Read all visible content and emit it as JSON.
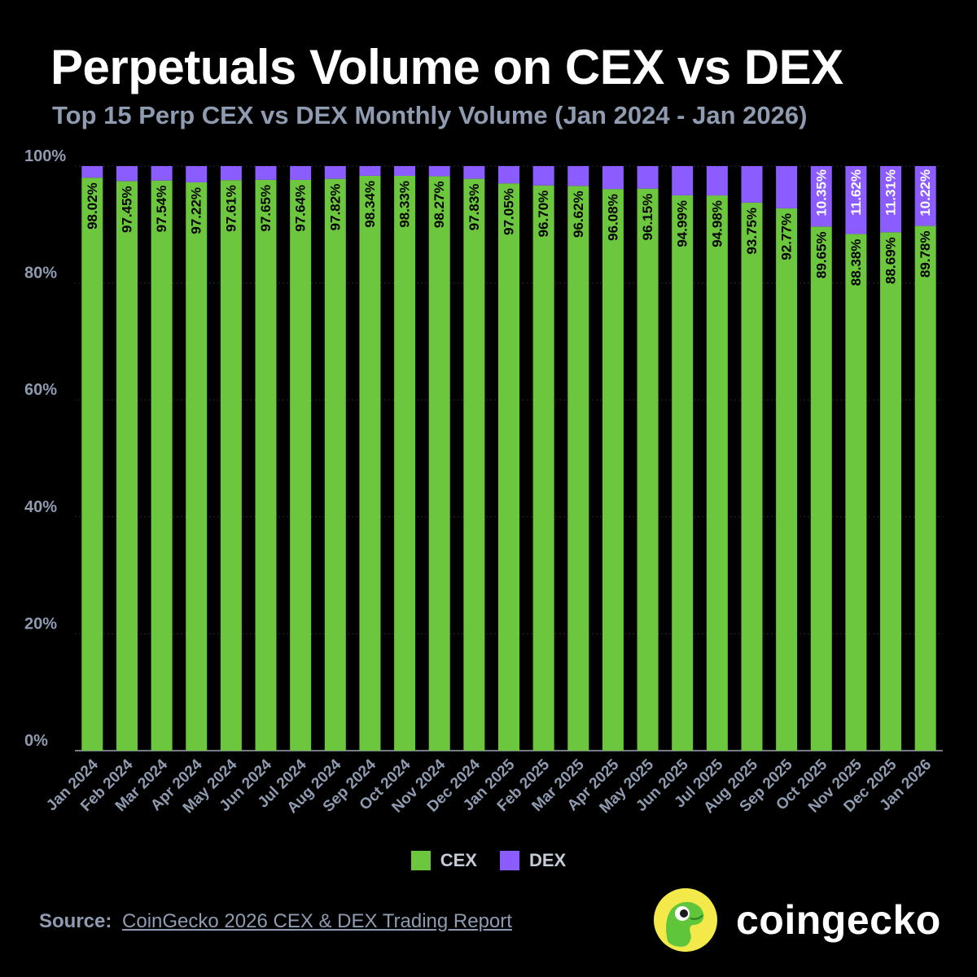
{
  "title": "Perpetuals Volume on CEX vs DEX",
  "subtitle": "Top 15 Perp CEX vs DEX Monthly Volume (Jan 2024 - Jan 2026)",
  "colors": {
    "cex": "#6cc73e",
    "dex": "#8b5cff",
    "background": "#000000",
    "axis_text": "#8e9bb0"
  },
  "chart_data": {
    "type": "bar",
    "stacked": true,
    "ylim": [
      0,
      100
    ],
    "yticks": [
      "0%",
      "20%",
      "40%",
      "60%",
      "80%",
      "100%"
    ],
    "yticks_values": [
      0,
      20,
      40,
      60,
      80,
      100
    ],
    "grid": true,
    "legend_position": "bottom-center",
    "categories": [
      "Jan 2024",
      "Feb 2024",
      "Mar 2024",
      "Apr 2024",
      "May 2024",
      "Jun 2024",
      "Jul 2024",
      "Aug 2024",
      "Sep 2024",
      "Oct 2024",
      "Nov 2024",
      "Dec 2024",
      "Jan 2025",
      "Feb 2025",
      "Mar 2025",
      "Apr 2025",
      "May 2025",
      "Jun 2025",
      "Jul 2025",
      "Aug 2025",
      "Sep 2025",
      "Oct 2025",
      "Nov 2025",
      "Dec 2025",
      "Jan 2026"
    ],
    "series": [
      {
        "name": "CEX",
        "values": [
          98.02,
          97.45,
          97.54,
          97.22,
          97.61,
          97.65,
          97.64,
          97.82,
          98.34,
          98.33,
          98.27,
          97.83,
          97.05,
          96.7,
          96.62,
          96.08,
          96.15,
          94.99,
          94.98,
          93.75,
          92.77,
          89.65,
          88.38,
          88.69,
          89.78
        ],
        "labels": [
          "98.02%",
          "97.45%",
          "97.54%",
          "97.22%",
          "97.61%",
          "97.65%",
          "97.64%",
          "97.82%",
          "98.34%",
          "98.33%",
          "98.27%",
          "97.83%",
          "97.05%",
          "96.70%",
          "96.62%",
          "96.08%",
          "96.15%",
          "94.99%",
          "94.98%",
          "93.75%",
          "92.77%",
          "89.65%",
          "88.38%",
          "88.69%",
          "89.78%"
        ]
      },
      {
        "name": "DEX",
        "values": [
          1.98,
          2.55,
          2.46,
          2.78,
          2.39,
          2.35,
          2.36,
          2.18,
          1.66,
          1.67,
          1.73,
          2.17,
          2.95,
          3.3,
          3.38,
          3.92,
          3.85,
          5.01,
          5.02,
          6.25,
          7.23,
          10.35,
          11.62,
          11.31,
          10.22
        ],
        "labels": [
          "",
          "",
          "",
          "",
          "",
          "",
          "",
          "",
          "",
          "",
          "",
          "",
          "",
          "",
          "",
          "",
          "",
          "",
          "",
          "",
          "",
          "10.35%",
          "11.62%",
          "11.31%",
          "10.22%"
        ]
      }
    ]
  },
  "legend": [
    {
      "name": "CEX",
      "color": "#6cc73e"
    },
    {
      "name": "DEX",
      "color": "#8b5cff"
    }
  ],
  "source": {
    "label": "Source:",
    "text": "CoinGecko 2026 CEX & DEX Trading Report"
  },
  "brand": {
    "name": "coingecko",
    "logo_icon": "gecko-icon"
  }
}
